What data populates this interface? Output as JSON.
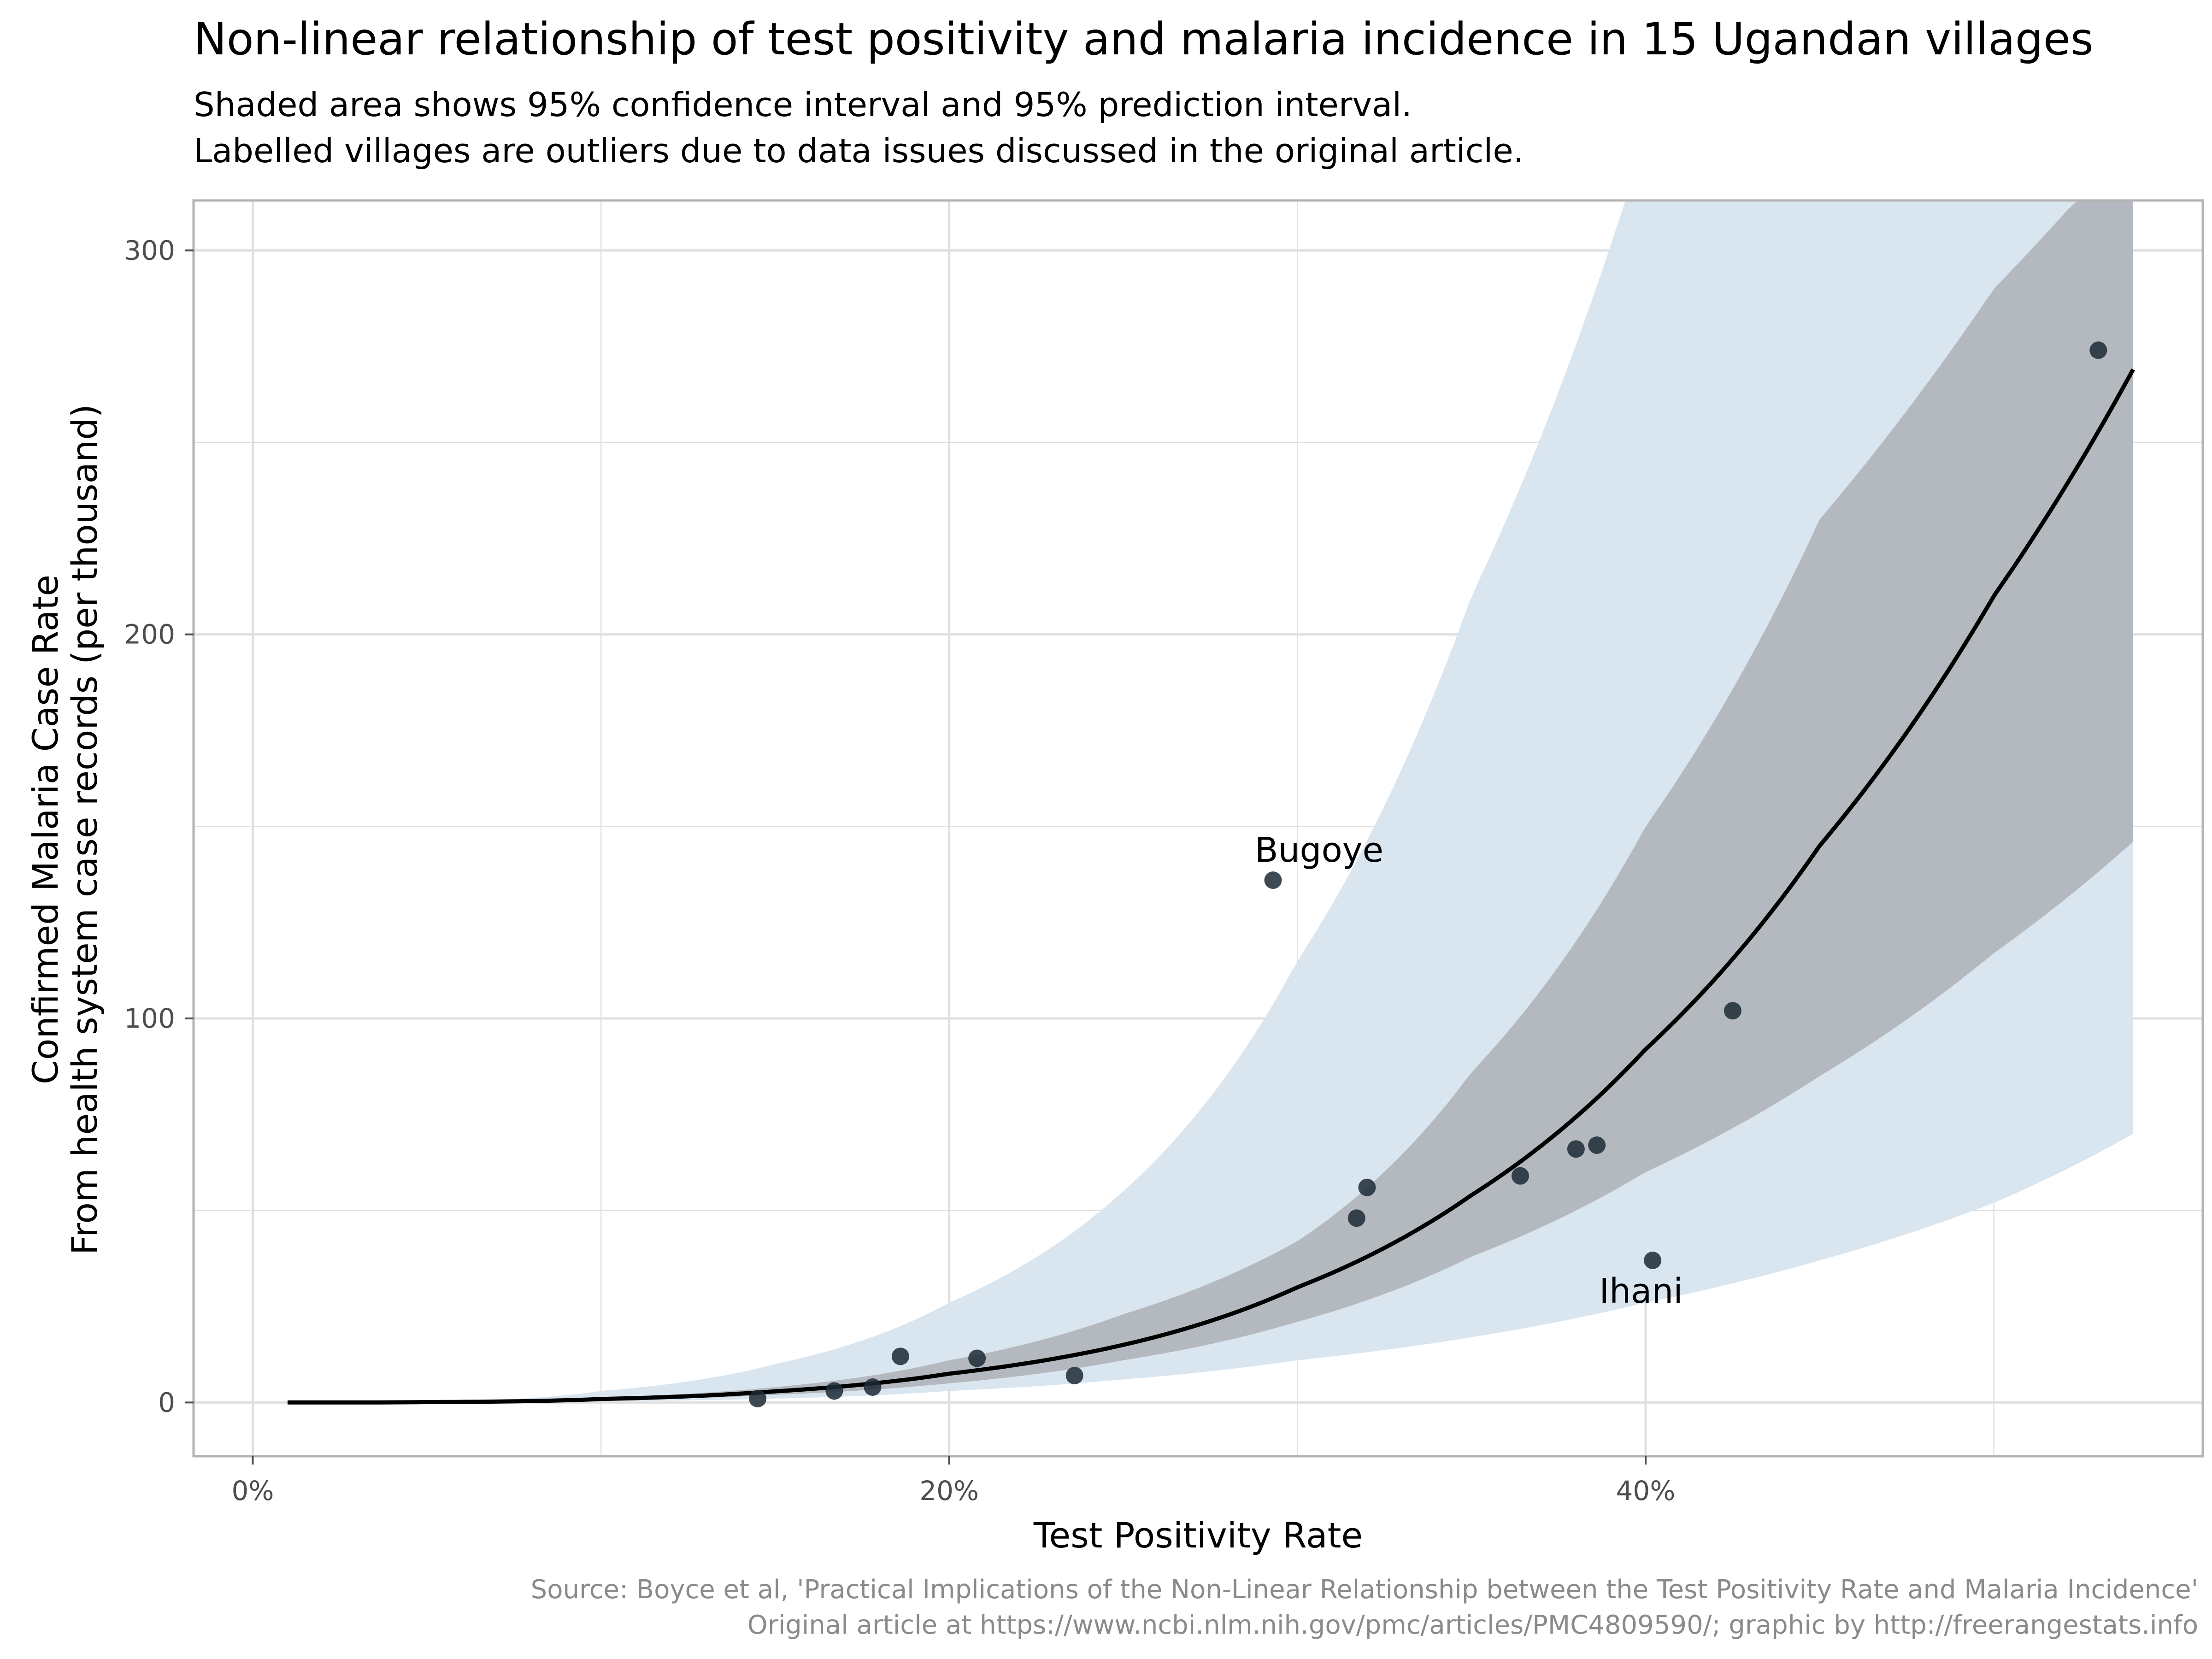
{
  "chart_data": {
    "type": "scatter",
    "title": "Non-linear relationship of test positivity and malaria incidence in 15 Ugandan villages",
    "subtitle": [
      "Shaded area shows 95% confidence interval and 95% prediction interval.",
      "Labelled villages are outliers due to data issues discussed in the original article."
    ],
    "xlabel": "Test Positivity Rate",
    "ylabel": [
      "Confirmed Malaria Case Rate",
      "From health system case records (per thousand)"
    ],
    "caption": [
      "Source: Boyce et al, 'Practical Implications of the Non-Linear Relationship between the Test Positivity Rate and Malaria Incidence'",
      "Original article at https://www.ncbi.nlm.nih.gov/pmc/articles/PMC4809590/; graphic by http://freerangestats.info"
    ],
    "x_ticks": [
      {
        "value": 0,
        "label": "0%"
      },
      {
        "value": 0.2,
        "label": "20%"
      },
      {
        "value": 0.4,
        "label": "40%"
      }
    ],
    "y_ticks": [
      {
        "value": 0,
        "label": "0"
      },
      {
        "value": 100,
        "label": "100"
      },
      {
        "value": 200,
        "label": "200"
      },
      {
        "value": 300,
        "label": "300"
      }
    ],
    "xlim": [
      -0.017,
      0.56
    ],
    "ylim": [
      -14,
      313
    ],
    "grid": true,
    "colors": {
      "prediction_interval": "#d9e5ef",
      "confidence_interval": "#b4b9bf",
      "fit_line": "#000000",
      "points": "#1c2a35",
      "panel_border": "#b3b3b3",
      "grid": "#e0e0e0"
    },
    "fit_curve": {
      "x": [
        0.01,
        0.05,
        0.1,
        0.15,
        0.2,
        0.25,
        0.3,
        0.35,
        0.4,
        0.45,
        0.5,
        0.54
      ],
      "y": [
        0,
        0.1,
        0.9,
        2.9,
        7.5,
        15,
        30,
        54,
        92,
        145,
        210,
        269
      ]
    },
    "confidence_interval": {
      "x": [
        0.01,
        0.05,
        0.1,
        0.15,
        0.2,
        0.25,
        0.3,
        0.35,
        0.4,
        0.45,
        0.5,
        0.54
      ],
      "lower": [
        0,
        0.1,
        0.6,
        2,
        5,
        11,
        21,
        38,
        60,
        85,
        117,
        146
      ],
      "upper": [
        0,
        0.1,
        1.3,
        4,
        11,
        23,
        42,
        86,
        150,
        230,
        290,
        330
      ]
    },
    "prediction_interval": {
      "x": [
        0.01,
        0.05,
        0.1,
        0.15,
        0.2,
        0.25,
        0.3,
        0.35,
        0.4,
        0.45,
        0.5,
        0.54
      ],
      "lower": [
        0,
        0.05,
        0.3,
        1,
        3,
        6,
        11,
        17,
        26,
        37,
        52,
        70
      ],
      "upper": [
        0,
        0.3,
        3,
        10,
        26,
        55,
        115,
        210,
        330,
        400,
        400,
        400
      ]
    },
    "points": [
      {
        "x": 0.145,
        "y": 1
      },
      {
        "x": 0.167,
        "y": 3
      },
      {
        "x": 0.178,
        "y": 4
      },
      {
        "x": 0.186,
        "y": 12
      },
      {
        "x": 0.208,
        "y": 11.5
      },
      {
        "x": 0.236,
        "y": 7
      },
      {
        "x": 0.293,
        "y": 136,
        "label": "Bugoye"
      },
      {
        "x": 0.317,
        "y": 48
      },
      {
        "x": 0.32,
        "y": 56
      },
      {
        "x": 0.364,
        "y": 59
      },
      {
        "x": 0.38,
        "y": 66
      },
      {
        "x": 0.386,
        "y": 67
      },
      {
        "x": 0.402,
        "y": 37,
        "label": "Ihani"
      },
      {
        "x": 0.425,
        "y": 102
      },
      {
        "x": 0.53,
        "y": 274
      }
    ]
  }
}
